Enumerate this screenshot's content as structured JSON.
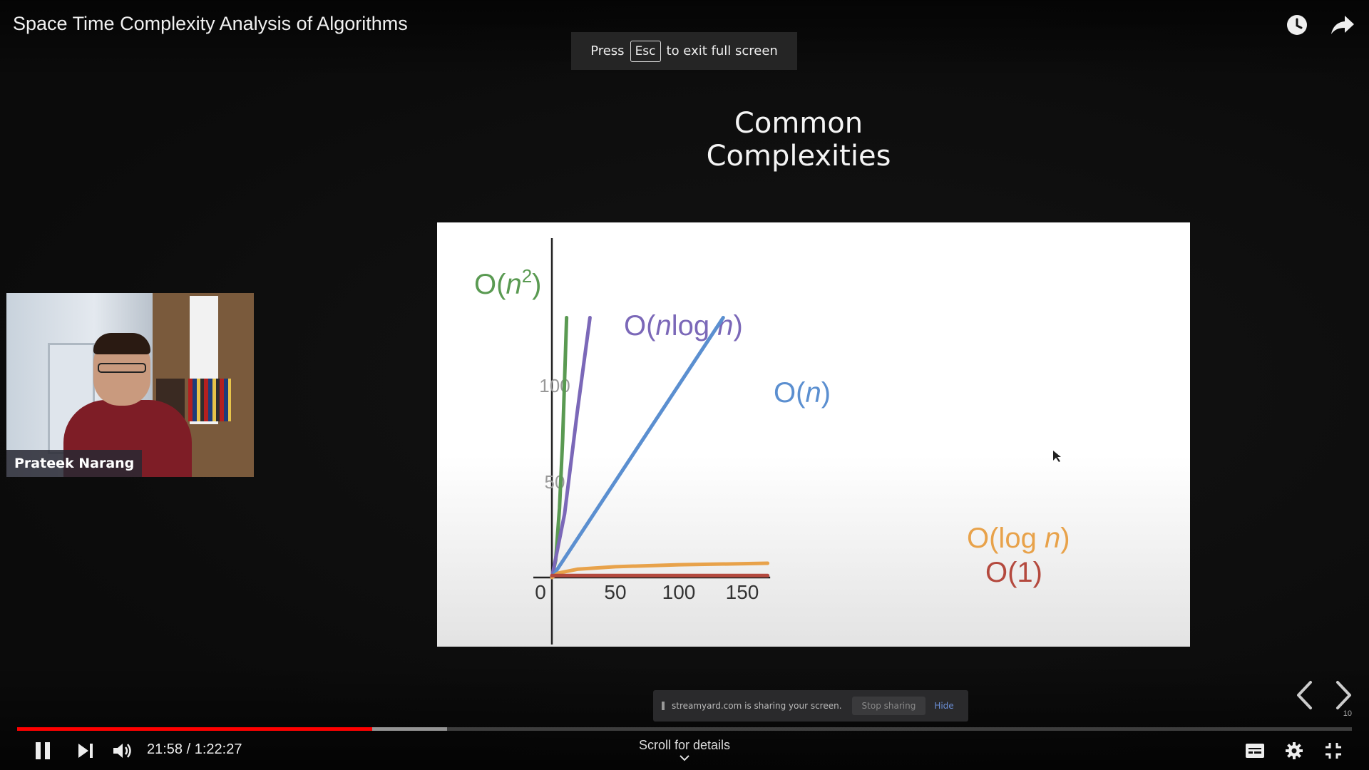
{
  "header": {
    "title": "Space Time Complexity Analysis of Algorithms",
    "icons": [
      "watch-later-icon",
      "share-icon"
    ]
  },
  "fullscreen_banner": {
    "prefix": "Press",
    "key": "Esc",
    "suffix": "to exit full screen"
  },
  "slide": {
    "title": "Common Complexities",
    "page_number": "10"
  },
  "chart_data": {
    "type": "line",
    "title": "",
    "xlabel": "",
    "ylabel": "",
    "xlim": [
      0,
      250
    ],
    "ylim": [
      0,
      135
    ],
    "x_ticks": [
      {
        "value": 0,
        "label": "0"
      },
      {
        "value": 50,
        "label": "50"
      },
      {
        "value": 100,
        "label": "100"
      },
      {
        "value": 150,
        "label": "150"
      }
    ],
    "y_ticks": [
      {
        "value": 50,
        "label": "50"
      },
      {
        "value": 100,
        "label": "100"
      }
    ],
    "series": [
      {
        "name": "O(n²)",
        "label_main": "O(",
        "label_var": "n",
        "label_sup": "2",
        "label_tail": ")",
        "color": "#5a9a52",
        "x": [
          0,
          3,
          6,
          8.5,
          11.6
        ],
        "y": [
          0,
          9,
          36,
          72,
          135
        ]
      },
      {
        "name": "O(nlog n)",
        "label_main": "O(",
        "label_var": "n",
        "label_mid": "log ",
        "label_var2": "n",
        "label_tail": ")",
        "color": "#7b68b8",
        "x": [
          0,
          10,
          20,
          30
        ],
        "y": [
          0,
          33,
          86,
          135
        ]
      },
      {
        "name": "O(n)",
        "label_main": "O(",
        "label_var": "n",
        "label_tail": ")",
        "color": "#5b8fd0",
        "x": [
          0,
          135
        ],
        "y": [
          0,
          135
        ]
      },
      {
        "name": "O(log n)",
        "label_main": "O(log ",
        "label_var": "n",
        "label_tail": ")",
        "color": "#e8a24a",
        "x": [
          0,
          5,
          20,
          50,
          100,
          170
        ],
        "y": [
          0,
          2.3,
          4.3,
          5.6,
          6.6,
          7.4
        ]
      },
      {
        "name": "O(1)",
        "label_main": "O(1)",
        "color": "#b4493e",
        "x": [
          0,
          170
        ],
        "y": [
          1,
          1
        ]
      }
    ]
  },
  "webcam": {
    "name": "Prateek Narang"
  },
  "screen_share_bar": {
    "message": "streamyard.com is sharing your screen.",
    "stop_label": "Stop sharing",
    "hide_label": "Hide"
  },
  "player": {
    "current_time": "21:58",
    "duration": "1:22:27",
    "time_separator": " / ",
    "played_fraction": 0.266,
    "loaded_fraction": 0.322,
    "scroll_hint": "Scroll for details",
    "accent_color": "#ff0000"
  }
}
